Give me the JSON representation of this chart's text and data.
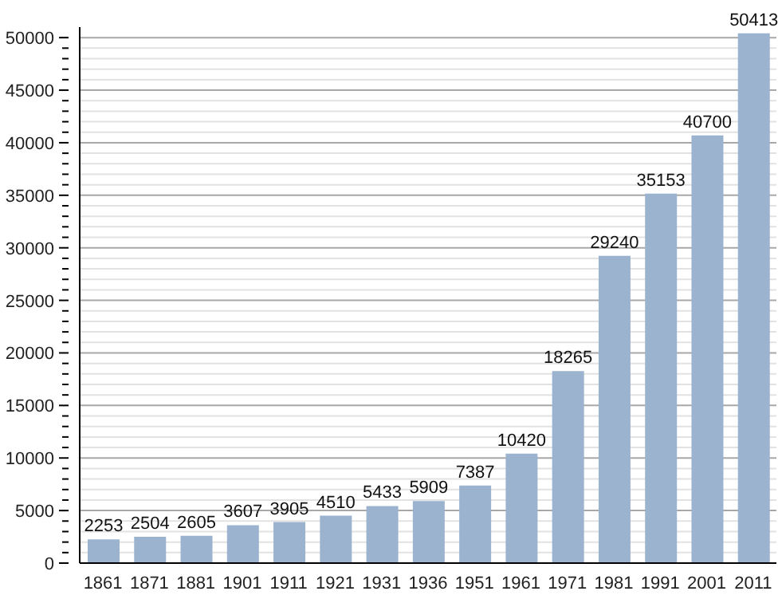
{
  "chart_data": {
    "type": "bar",
    "categories": [
      "1861",
      "1871",
      "1881",
      "1901",
      "1911",
      "1921",
      "1931",
      "1936",
      "1951",
      "1961",
      "1971",
      "1981",
      "1991",
      "2001",
      "2011"
    ],
    "values": [
      2253,
      2504,
      2605,
      3607,
      3905,
      4510,
      5433,
      5909,
      7387,
      10420,
      18265,
      29240,
      35153,
      40700,
      50413
    ],
    "color": "#9bb3cf",
    "data_labels": true,
    "ylim": [
      0,
      51000
    ],
    "yticks": [
      0,
      {
        "value": 1000,
        "label": null
      },
      {
        "value": 2000,
        "label": null
      },
      {
        "value": 3000,
        "label": null
      },
      {
        "value": 4000,
        "label": null
      },
      5000,
      {
        "value": 6000,
        "label": null
      },
      {
        "value": 7000,
        "label": null
      },
      {
        "value": 8000,
        "label": null
      },
      {
        "value": 9000,
        "label": null
      },
      10000,
      {
        "value": 11000,
        "label": null
      },
      {
        "value": 12000,
        "label": null
      },
      {
        "value": 13000,
        "label": null
      },
      {
        "value": 14000,
        "label": null
      },
      15000,
      {
        "value": 16000,
        "label": null
      },
      {
        "value": 17000,
        "label": null
      },
      {
        "value": 18000,
        "label": null
      },
      {
        "value": 19000,
        "label": null
      },
      20000,
      {
        "value": 21000,
        "label": null
      },
      {
        "value": 22000,
        "label": null
      },
      {
        "value": 23000,
        "label": null
      },
      {
        "value": 24000,
        "label": null
      },
      25000,
      {
        "value": 26000,
        "label": null
      },
      {
        "value": 27000,
        "label": null
      },
      {
        "value": 28000,
        "label": null
      },
      {
        "value": 29000,
        "label": null
      },
      30000,
      {
        "value": 31000,
        "label": null
      },
      {
        "value": 32000,
        "label": null
      },
      {
        "value": 33000,
        "label": null
      },
      {
        "value": 34000,
        "label": null
      },
      35000,
      {
        "value": 36000,
        "label": null
      },
      {
        "value": 37000,
        "label": null
      },
      {
        "value": 38000,
        "label": null
      },
      {
        "value": 39000,
        "label": null
      },
      40000,
      {
        "value": 41000,
        "label": null
      },
      {
        "value": 42000,
        "label": null
      },
      {
        "value": 43000,
        "label": null
      },
      {
        "value": 44000,
        "label": null
      },
      45000,
      {
        "value": 46000,
        "label": null
      },
      {
        "value": 47000,
        "label": null
      },
      {
        "value": 48000,
        "label": null
      },
      {
        "value": 49000,
        "label": null
      },
      50000
    ],
    "grid": "y"
  }
}
